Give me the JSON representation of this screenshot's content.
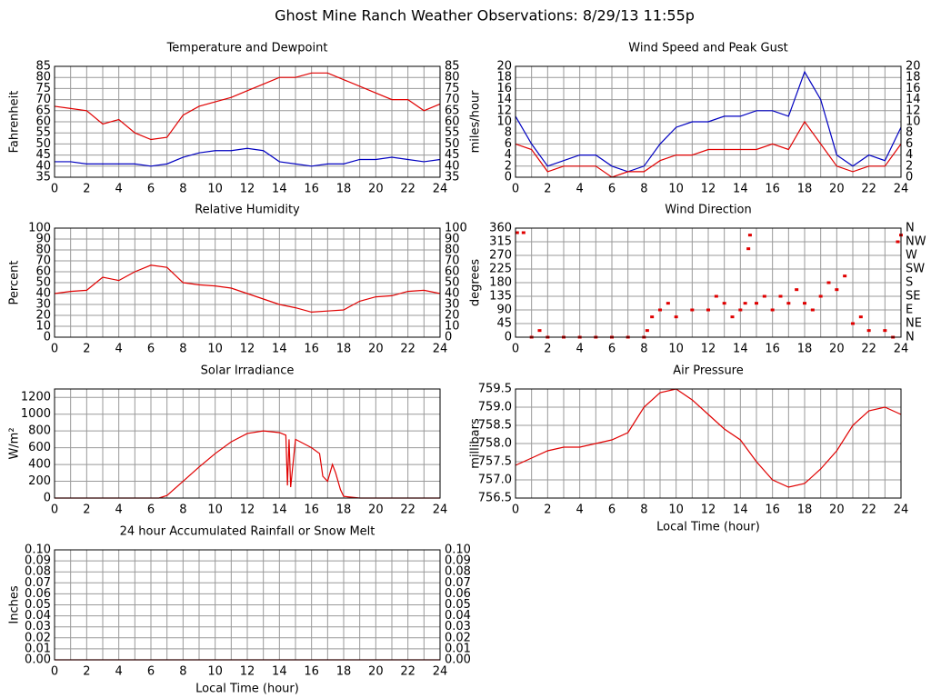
{
  "title": "Ghost Mine Ranch Weather Observations: 8/29/13 11:55p",
  "chart_data": [
    {
      "type": "line",
      "title": "Temperature and Dewpoint",
      "ylabel": "Fahrenheit",
      "x": [
        0,
        1,
        2,
        3,
        4,
        5,
        6,
        7,
        8,
        9,
        10,
        11,
        12,
        13,
        14,
        15,
        16,
        17,
        18,
        19,
        20,
        21,
        22,
        23,
        24
      ],
      "series": [
        {
          "color": "#e00000",
          "values": [
            67,
            66,
            65,
            59,
            61,
            55,
            52,
            53,
            63,
            67,
            69,
            71,
            74,
            77,
            80,
            80,
            82,
            82,
            79,
            76,
            73,
            70,
            70,
            65,
            68
          ]
        },
        {
          "color": "#0000c0",
          "values": [
            42,
            42,
            41,
            41,
            41,
            41,
            40,
            41,
            44,
            46,
            47,
            47,
            48,
            47,
            42,
            41,
            40,
            41,
            41,
            43,
            43,
            44,
            43,
            42,
            43
          ]
        }
      ],
      "xlim": [
        0,
        24
      ],
      "xticks": [
        0,
        2,
        4,
        6,
        8,
        10,
        12,
        14,
        16,
        18,
        20,
        22,
        24
      ],
      "ylim": [
        35,
        85
      ],
      "yticks": [
        35,
        40,
        45,
        50,
        55,
        60,
        65,
        70,
        75,
        80,
        85
      ],
      "y2lim": [
        35,
        85
      ],
      "y2ticks": [
        35,
        40,
        45,
        50,
        55,
        60,
        65,
        70,
        75,
        80,
        85
      ],
      "grid": true
    },
    {
      "type": "line",
      "title": "Wind Speed and Peak Gust",
      "ylabel": "miles/hour",
      "x": [
        0,
        1,
        2,
        3,
        4,
        5,
        6,
        7,
        8,
        9,
        10,
        11,
        12,
        13,
        14,
        15,
        16,
        17,
        18,
        19,
        20,
        21,
        22,
        23,
        24
      ],
      "series": [
        {
          "color": "#0000c0",
          "values": [
            11,
            6,
            2,
            3,
            4,
            4,
            2,
            1,
            2,
            6,
            9,
            10,
            10,
            11,
            11,
            12,
            12,
            11,
            19,
            14,
            4,
            2,
            4,
            3,
            9
          ]
        },
        {
          "color": "#e00000",
          "values": [
            6,
            5,
            1,
            2,
            2,
            2,
            0,
            1,
            1,
            3,
            4,
            4,
            5,
            5,
            5,
            5,
            6,
            5,
            10,
            6,
            2,
            1,
            2,
            2,
            6
          ]
        }
      ],
      "xlim": [
        0,
        24
      ],
      "xticks": [
        0,
        2,
        4,
        6,
        8,
        10,
        12,
        14,
        16,
        18,
        20,
        22,
        24
      ],
      "ylim": [
        0,
        20
      ],
      "yticks": [
        0,
        2,
        4,
        6,
        8,
        10,
        12,
        14,
        16,
        18,
        20
      ],
      "y2lim": [
        0,
        20
      ],
      "y2ticks": [
        0,
        2,
        4,
        6,
        8,
        10,
        12,
        14,
        16,
        18,
        20
      ],
      "grid": true
    },
    {
      "type": "line",
      "title": "Relative Humidity",
      "ylabel": "Percent",
      "x": [
        0,
        1,
        2,
        3,
        4,
        5,
        6,
        7,
        8,
        9,
        10,
        11,
        12,
        13,
        14,
        15,
        16,
        17,
        18,
        19,
        20,
        21,
        22,
        23,
        24
      ],
      "series": [
        {
          "color": "#e00000",
          "values": [
            40,
            42,
            43,
            55,
            52,
            60,
            66,
            64,
            50,
            48,
            47,
            45,
            40,
            35,
            30,
            27,
            23,
            24,
            25,
            33,
            37,
            38,
            42,
            43,
            40
          ]
        }
      ],
      "xlim": [
        0,
        24
      ],
      "xticks": [
        0,
        2,
        4,
        6,
        8,
        10,
        12,
        14,
        16,
        18,
        20,
        22,
        24
      ],
      "ylim": [
        0,
        100
      ],
      "yticks": [
        0,
        10,
        20,
        30,
        40,
        50,
        60,
        70,
        80,
        90,
        100
      ],
      "y2lim": [
        0,
        100
      ],
      "y2ticks": [
        0,
        10,
        20,
        30,
        40,
        50,
        60,
        70,
        80,
        90,
        100
      ],
      "grid": true
    },
    {
      "type": "scatter",
      "title": "Wind Direction",
      "ylabel": "degrees",
      "x": [
        0.1,
        0.5,
        1,
        1.5,
        2,
        3,
        4,
        5,
        6,
        7,
        8,
        8.2,
        8.5,
        9,
        9.5,
        10,
        11,
        12,
        12.5,
        13,
        13.5,
        14,
        14.3,
        14.5,
        14.6,
        15,
        15.5,
        16,
        16.5,
        17,
        17.5,
        18,
        18.5,
        19,
        19.5,
        20,
        20.5,
        21,
        21.5,
        22,
        23,
        23.5,
        23.8,
        24
      ],
      "series": [
        {
          "color": "#e00000",
          "values": [
            345,
            345,
            0,
            22,
            0,
            0,
            0,
            0,
            0,
            0,
            0,
            22,
            67,
            90,
            112,
            67,
            90,
            90,
            135,
            112,
            67,
            90,
            112,
            292,
            337,
            112,
            135,
            90,
            135,
            112,
            157,
            112,
            90,
            135,
            180,
            157,
            202,
            45,
            67,
            22,
            22,
            0,
            315,
            337
          ]
        }
      ],
      "xlim": [
        0,
        24
      ],
      "xticks": [
        0,
        2,
        4,
        6,
        8,
        10,
        12,
        14,
        16,
        18,
        20,
        22,
        24
      ],
      "ylim": [
        0,
        360
      ],
      "yticks": [
        0,
        45,
        90,
        135,
        180,
        225,
        270,
        315,
        360
      ],
      "y2lim": [
        0,
        360
      ],
      "y2ticks": [
        {
          "value": 0,
          "label": "N"
        },
        {
          "value": 45,
          "label": "NE"
        },
        {
          "value": 90,
          "label": "E"
        },
        {
          "value": 135,
          "label": "SE"
        },
        {
          "value": 180,
          "label": "S"
        },
        {
          "value": 225,
          "label": "SW"
        },
        {
          "value": 270,
          "label": "W"
        },
        {
          "value": 315,
          "label": "NW"
        },
        {
          "value": 360,
          "label": "N"
        }
      ],
      "grid": true
    },
    {
      "type": "line",
      "title": "Solar Irradiance",
      "ylabel": "W/m²",
      "x": [
        0,
        6.5,
        7,
        8,
        9,
        10,
        11,
        12,
        13,
        14,
        14.4,
        14.5,
        14.6,
        14.7,
        15,
        16,
        16.5,
        16.7,
        17,
        17.3,
        17.5,
        17.8,
        18,
        19,
        20,
        24
      ],
      "series": [
        {
          "color": "#e00000",
          "values": [
            0,
            0,
            30,
            200,
            370,
            530,
            670,
            770,
            800,
            780,
            750,
            150,
            700,
            130,
            700,
            600,
            530,
            260,
            200,
            400,
            300,
            100,
            20,
            0,
            0,
            0
          ]
        }
      ],
      "xlim": [
        0,
        24
      ],
      "xticks": [
        0,
        2,
        4,
        6,
        8,
        10,
        12,
        14,
        16,
        18,
        20,
        22,
        24
      ],
      "ylim": [
        0,
        1300
      ],
      "yticks": [
        0,
        200,
        400,
        600,
        800,
        1000,
        1200
      ],
      "grid": true
    },
    {
      "type": "line",
      "title": "Air Pressure",
      "ylabel": "millibars",
      "xlabel": "Local Time (hour)",
      "x": [
        0,
        1,
        2,
        3,
        4,
        5,
        6,
        7,
        8,
        9,
        10,
        11,
        12,
        13,
        14,
        15,
        16,
        17,
        18,
        19,
        20,
        21,
        22,
        23,
        24
      ],
      "series": [
        {
          "color": "#e00000",
          "values": [
            757.4,
            757.6,
            757.8,
            757.9,
            757.9,
            758.0,
            758.1,
            758.3,
            759.0,
            759.4,
            759.5,
            759.2,
            758.8,
            758.4,
            758.1,
            757.5,
            757.0,
            756.8,
            756.9,
            757.3,
            757.8,
            758.5,
            758.9,
            759.0,
            758.8
          ]
        }
      ],
      "xlim": [
        0,
        24
      ],
      "xticks": [
        0,
        2,
        4,
        6,
        8,
        10,
        12,
        14,
        16,
        18,
        20,
        22,
        24
      ],
      "ylim": [
        756.5,
        759.5
      ],
      "yticks": [
        756.5,
        {
          "value": 757,
          "label": "757.0"
        },
        757.5,
        {
          "value": 758,
          "label": "758.0"
        },
        758.5,
        {
          "value": 759,
          "label": "759.0"
        },
        759.5
      ],
      "grid": true
    },
    {
      "type": "line",
      "title": "24 hour Accumulated Rainfall or Snow Melt",
      "ylabel": "Inches",
      "xlabel": "Local Time (hour)",
      "x": [
        0,
        1,
        2,
        3,
        4,
        5,
        6,
        7,
        8,
        9,
        10,
        11,
        12,
        13,
        14,
        15,
        16,
        17,
        18,
        19,
        20,
        21,
        22,
        23,
        24
      ],
      "series": [
        {
          "color": "#e00000",
          "values": [
            0,
            0,
            0,
            0,
            0,
            0,
            0,
            0,
            0,
            0,
            0,
            0,
            0,
            0,
            0,
            0,
            0,
            0,
            0,
            0,
            0,
            0,
            0,
            0,
            0
          ]
        }
      ],
      "xlim": [
        0,
        24
      ],
      "xticks": [
        0,
        2,
        4,
        6,
        8,
        10,
        12,
        14,
        16,
        18,
        20,
        22,
        24
      ],
      "ylim": [
        0,
        0.1
      ],
      "yticks": [
        {
          "value": 0,
          "label": "0.00"
        },
        {
          "value": 0.01,
          "label": "0.01"
        },
        {
          "value": 0.02,
          "label": "0.02"
        },
        {
          "value": 0.03,
          "label": "0.03"
        },
        {
          "value": 0.04,
          "label": "0.04"
        },
        {
          "value": 0.05,
          "label": "0.05"
        },
        {
          "value": 0.06,
          "label": "0.06"
        },
        {
          "value": 0.07,
          "label": "0.07"
        },
        {
          "value": 0.08,
          "label": "0.08"
        },
        {
          "value": 0.09,
          "label": "0.09"
        },
        {
          "value": 0.1,
          "label": "0.10"
        }
      ],
      "y2lim": [
        0,
        0.1
      ],
      "y2ticks": [
        {
          "value": 0,
          "label": "0.00"
        },
        {
          "value": 0.01,
          "label": "0.01"
        },
        {
          "value": 0.02,
          "label": "0.02"
        },
        {
          "value": 0.03,
          "label": "0.03"
        },
        {
          "value": 0.04,
          "label": "0.04"
        },
        {
          "value": 0.05,
          "label": "0.05"
        },
        {
          "value": 0.06,
          "label": "0.06"
        },
        {
          "value": 0.07,
          "label": "0.07"
        },
        {
          "value": 0.08,
          "label": "0.08"
        },
        {
          "value": 0.09,
          "label": "0.09"
        },
        {
          "value": 0.1,
          "label": "0.10"
        }
      ],
      "grid": true
    }
  ]
}
